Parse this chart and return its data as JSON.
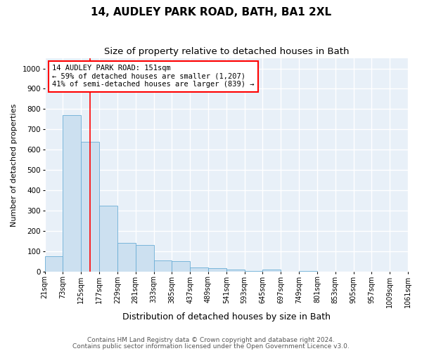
{
  "title1": "14, AUDLEY PARK ROAD, BATH, BA1 2XL",
  "title2": "Size of property relative to detached houses in Bath",
  "xlabel": "Distribution of detached houses by size in Bath",
  "ylabel": "Number of detached properties",
  "footer1": "Contains HM Land Registry data © Crown copyright and database right 2024.",
  "footer2": "Contains public sector information licensed under the Open Government Licence v3.0.",
  "bar_left_edges": [
    21,
    73,
    125,
    177,
    229,
    281,
    333,
    385,
    437,
    489,
    541,
    593,
    645,
    697,
    749,
    801,
    853,
    905,
    957,
    1009
  ],
  "bar_heights": [
    75,
    770,
    640,
    325,
    140,
    130,
    55,
    50,
    20,
    15,
    8,
    3,
    8,
    0,
    3,
    0,
    0,
    0,
    0,
    0
  ],
  "bin_width": 52,
  "bar_color": "#cce0f0",
  "bar_edgecolor": "#6aaed6",
  "bg_color": "#e8f0f8",
  "grid_color": "#ffffff",
  "vline_x": 151,
  "vline_color": "red",
  "annotation_text1": "14 AUDLEY PARK ROAD: 151sqm",
  "annotation_text2": "← 59% of detached houses are smaller (1,207)",
  "annotation_text3": "41% of semi-detached houses are larger (839) →",
  "annotation_fontsize": 7.5,
  "annotation_boxcolor": "white",
  "annotation_edgecolor": "red",
  "ylim": [
    0,
    1050
  ],
  "yticks": [
    0,
    100,
    200,
    300,
    400,
    500,
    600,
    700,
    800,
    900,
    1000
  ],
  "xlim": [
    21,
    1061
  ],
  "tick_labels": [
    "21sqm",
    "73sqm",
    "125sqm",
    "177sqm",
    "229sqm",
    "281sqm",
    "333sqm",
    "385sqm",
    "437sqm",
    "489sqm",
    "541sqm",
    "593sqm",
    "645sqm",
    "697sqm",
    "749sqm",
    "801sqm",
    "853sqm",
    "905sqm",
    "957sqm",
    "1009sqm",
    "1061sqm"
  ],
  "title1_fontsize": 11,
  "title2_fontsize": 9.5,
  "xlabel_fontsize": 9,
  "ylabel_fontsize": 8,
  "tick_fontsize": 7,
  "ytick_fontsize": 7.5,
  "footer_fontsize": 6.5
}
